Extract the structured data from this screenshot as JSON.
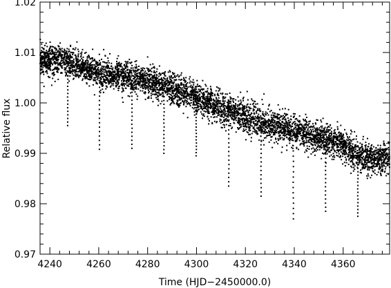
{
  "chart_data": {
    "type": "scatter",
    "title": "",
    "xlabel": "Time (HJD−2450000.0)",
    "ylabel": "Relative flux",
    "xlim": [
      4236,
      4379
    ],
    "ylim": [
      0.97,
      1.02
    ],
    "grid": false,
    "legend": "none",
    "color": "#000000",
    "xticks": [
      4240,
      4260,
      4280,
      4300,
      4320,
      4340,
      4360
    ],
    "xtick_labels": [
      "4240",
      "4260",
      "4280",
      "4300",
      "4320",
      "4340",
      "4360"
    ],
    "yticks": [
      0.97,
      0.98,
      0.99,
      1.0,
      1.01,
      1.02
    ],
    "ytick_labels": [
      "0.97",
      "0.98",
      "0.99",
      "1.00",
      "1.01",
      "1.02"
    ],
    "trend": {
      "x": [
        4236,
        4245,
        4260,
        4275,
        4285,
        4300,
        4310,
        4320,
        4330,
        4340,
        4350,
        4360,
        4368,
        4379
      ],
      "y": [
        1.0085,
        1.0085,
        1.006,
        1.0048,
        1.0035,
        1.001,
        0.999,
        0.997,
        0.9958,
        0.9945,
        0.993,
        0.9918,
        0.989,
        0.989
      ]
    },
    "scatter_sigma": 0.0015,
    "dips": [
      {
        "x": 4247.3,
        "min_y": 0.9955
      },
      {
        "x": 4260.3,
        "min_y": 0.9908
      },
      {
        "x": 4273.6,
        "min_y": 0.991
      },
      {
        "x": 4286.7,
        "min_y": 0.99
      },
      {
        "x": 4299.9,
        "min_y": 0.9895
      },
      {
        "x": 4313.2,
        "min_y": 0.9835
      },
      {
        "x": 4326.4,
        "min_y": 0.9815
      },
      {
        "x": 4339.6,
        "min_y": 0.977
      },
      {
        "x": 4352.8,
        "min_y": 0.9785
      },
      {
        "x": 4366.0,
        "min_y": 0.9775
      }
    ]
  }
}
